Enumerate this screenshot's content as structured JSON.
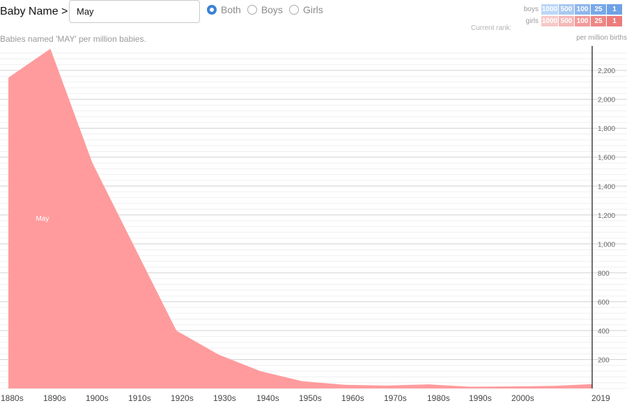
{
  "header": {
    "label": "Baby Name >",
    "name_value": "May",
    "name_placeholder": "",
    "sex_options": [
      {
        "label": "Both",
        "checked": true
      },
      {
        "label": "Boys",
        "checked": false
      },
      {
        "label": "Girls",
        "checked": false
      }
    ]
  },
  "subtitle": "Babies named 'MAY' per million babies.",
  "rank_legend": {
    "title": "Current rank:",
    "rows": [
      {
        "label": "boys",
        "cells": [
          {
            "text": "1000",
            "color": "#bcd6f6"
          },
          {
            "text": "500",
            "color": "#a9c8f0"
          },
          {
            "text": "100",
            "color": "#8fb6ec"
          },
          {
            "text": "25",
            "color": "#79a8e8"
          },
          {
            "text": "1",
            "color": "#6fa1e6"
          }
        ]
      },
      {
        "label": "girls",
        "cells": [
          {
            "text": "1000",
            "color": "#f7c8c8"
          },
          {
            "text": "500",
            "color": "#f4b7b7"
          },
          {
            "text": "100",
            "color": "#f29a9a"
          },
          {
            "text": "25",
            "color": "#ef8686"
          },
          {
            "text": "1",
            "color": "#ed7b7b"
          }
        ]
      }
    ]
  },
  "unit_label": "per million births",
  "colors": {
    "girls_area": "#ff9b9d",
    "gridline": "#d4d4d4",
    "minor_gridline": "#efefef",
    "axis": "#111111"
  },
  "chart_data": {
    "type": "area",
    "series": [
      {
        "name": "May",
        "x": [
          1880,
          1890,
          1900,
          1910,
          1920,
          1930,
          1940,
          1950,
          1960,
          1970,
          1980,
          1990,
          2000,
          2010,
          2019
        ],
        "values": [
          2150,
          2350,
          1560,
          980,
          400,
          235,
          120,
          50,
          25,
          20,
          28,
          12,
          14,
          18,
          30
        ]
      }
    ],
    "x_tick_labels": [
      "1880s",
      "1890s",
      "1900s",
      "1910s",
      "1920s",
      "1930s",
      "1940s",
      "1950s",
      "1960s",
      "1970s",
      "1980s",
      "1990s",
      "2000s",
      "2019"
    ],
    "y_ticks": [
      200,
      400,
      600,
      800,
      1000,
      1200,
      1400,
      1600,
      1800,
      2000,
      2200
    ],
    "y_tick_labels": [
      "200",
      "400",
      "600",
      "800",
      "1,000",
      "1,200",
      "1,400",
      "1,600",
      "1,800",
      "2,000",
      "2,200"
    ],
    "xlim": [
      1878,
      2019
    ],
    "ylim": [
      0,
      2350
    ],
    "ylabel": "per million births",
    "grid": true
  }
}
